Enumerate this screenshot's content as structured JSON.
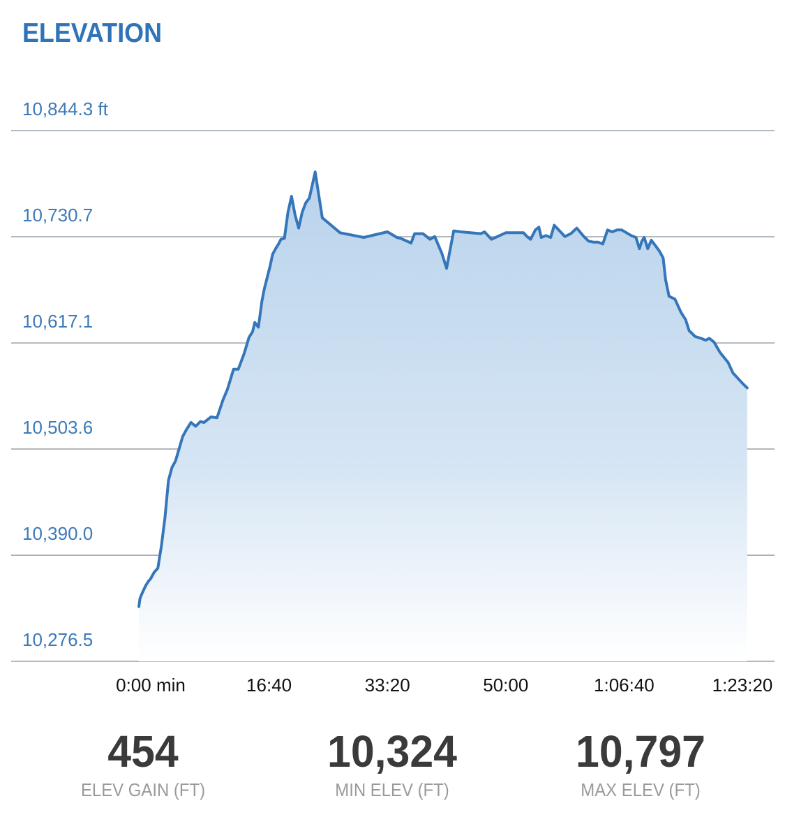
{
  "header": {
    "title": "ELEVATION"
  },
  "chart_data": {
    "type": "area",
    "title": "ELEVATION",
    "unit": "ft",
    "y_ticks": [
      "10,844.3 ft",
      "10,730.7",
      "10,617.1",
      "10,503.6",
      "10,390.0",
      "10,276.5"
    ],
    "y_tick_values": [
      10844.3,
      10730.7,
      10617.1,
      10503.6,
      10390.0,
      10276.5
    ],
    "x_ticks": [
      "0:00 min",
      "16:40",
      "33:20",
      "50:00",
      "1:06:40",
      "1:23:20"
    ],
    "x_tick_values": [
      0,
      1000,
      2000,
      3000,
      4000,
      5000
    ],
    "xlim": [
      0,
      5000
    ],
    "ylim": [
      10276.5,
      10844.3
    ],
    "grid": true,
    "color": "#3576ba",
    "fill_top_color": "#b9d3ec",
    "series": [
      {
        "x": [
          -100,
          -90,
          -70,
          -40,
          -20,
          0,
          30,
          60,
          90,
          120,
          150,
          180,
          210,
          240,
          270,
          300,
          340,
          380,
          420,
          450,
          510,
          560,
          610,
          650,
          700,
          740,
          790,
          830,
          860,
          880,
          910,
          940,
          960,
          980,
          1010,
          1030,
          1060,
          1080,
          1100,
          1130,
          1160,
          1190,
          1220,
          1250,
          1280,
          1310,
          1340,
          1370,
          1390,
          1450,
          1600,
          1800,
          2000,
          2080,
          2110,
          2130,
          2200,
          2230,
          2300,
          2360,
          2400,
          2420,
          2460,
          2500,
          2560,
          2620,
          2790,
          2820,
          2880,
          3000,
          3110,
          3150,
          3180,
          3210,
          3250,
          3280,
          3300,
          3340,
          3380,
          3410,
          3440,
          3470,
          3500,
          3550,
          3600,
          3660,
          3700,
          3740,
          3780,
          3820,
          3860,
          3900,
          3940,
          3980,
          4020,
          4060,
          4100,
          4130,
          4150,
          4170,
          4200,
          4230,
          4260,
          4300,
          4330,
          4350,
          4380,
          4430,
          4480,
          4520,
          4550,
          4560,
          4600,
          4650,
          4690,
          4720,
          4760,
          4810,
          4880,
          4920,
          5000,
          5040
        ],
        "y": [
          10335,
          10344,
          10350,
          10358,
          10362,
          10365,
          10372,
          10376,
          10400,
          10430,
          10470,
          10484,
          10491,
          10504,
          10517,
          10524,
          10532,
          10528,
          10533,
          10532,
          10538,
          10537,
          10556,
          10568,
          10589,
          10589,
          10606,
          10623,
          10629,
          10639,
          10634,
          10662,
          10675,
          10685,
          10700,
          10712,
          10719,
          10723,
          10728,
          10729,
          10757,
          10774,
          10754,
          10740,
          10757,
          10767,
          10772,
          10789,
          10800,
          10751,
          10735,
          10730,
          10736,
          10730,
          10729,
          10728,
          10724,
          10734,
          10734,
          10728,
          10731,
          10725,
          10713,
          10697,
          10737,
          10736,
          10734,
          10736,
          10728,
          10735,
          10735,
          10735,
          10731,
          10728,
          10738,
          10741,
          10730,
          10732,
          10730,
          10743,
          10739,
          10735,
          10731,
          10734,
          10740,
          10731,
          10726,
          10725,
          10725,
          10723,
          10738,
          10736,
          10738,
          10738,
          10735,
          10732,
          10730,
          10718,
          10726,
          10730,
          10718,
          10727,
          10722,
          10715,
          10708,
          10685,
          10667,
          10664,
          10650,
          10642,
          10630,
          10629,
          10624,
          10622,
          10620,
          10622,
          10618,
          10607,
          10596,
          10585,
          10574,
          10569
        ]
      }
    ]
  },
  "stats": [
    {
      "value": "454",
      "label": "ELEV GAIN (FT)"
    },
    {
      "value": "10,324",
      "label": "MIN ELEV (FT)"
    },
    {
      "value": "10,797",
      "label": "MAX ELEV (FT)"
    }
  ]
}
